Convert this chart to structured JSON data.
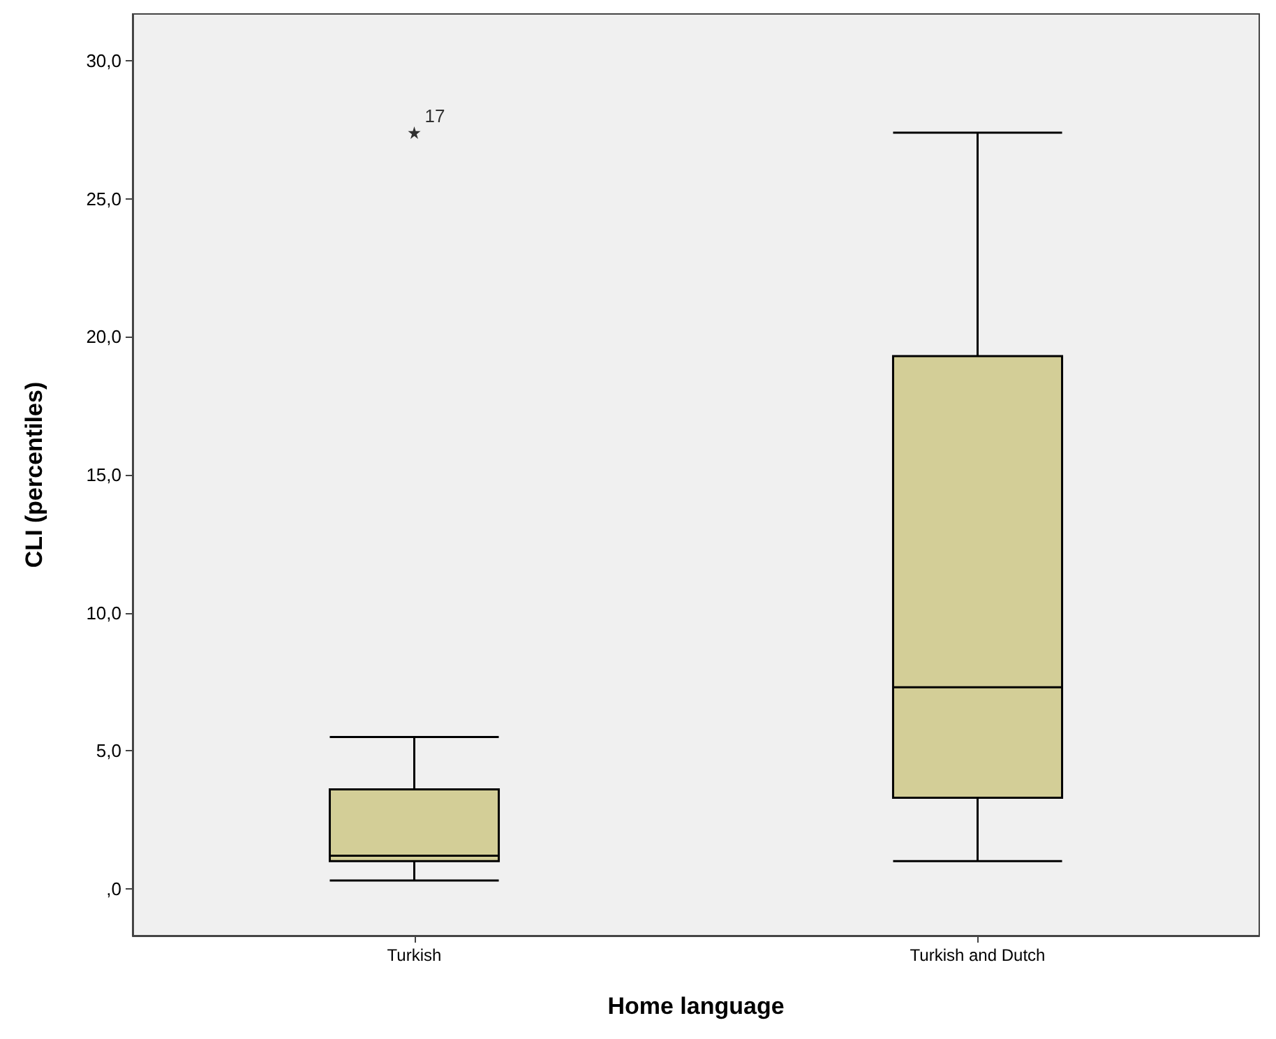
{
  "chart_data": {
    "type": "box",
    "xlabel": "Home language",
    "ylabel": "CLI (percentiles)",
    "categories": [
      "Turkish",
      "Turkish and Dutch"
    ],
    "boxes": [
      {
        "low": 0.3,
        "q1": 1.0,
        "median": 1.2,
        "q3": 3.6,
        "high": 5.5,
        "outliers": [
          27.4
        ]
      },
      {
        "low": 1.0,
        "q1": 3.3,
        "median": 7.3,
        "q3": 19.3,
        "high": 27.4
      }
    ],
    "color": "#d3ce97",
    "ylim": [
      -1.7,
      31.7
    ],
    "yticks": [
      {
        "value": 0,
        "label": ",0"
      },
      {
        "value": 5,
        "label": "5,0"
      },
      {
        "value": 10,
        "label": "10,0"
      },
      {
        "value": 15,
        "label": "15,0"
      },
      {
        "value": 20,
        "label": "20,0"
      },
      {
        "value": 25,
        "label": "25,0"
      },
      {
        "value": 30,
        "label": "30,0"
      }
    ],
    "grid": false,
    "marker": "star",
    "annotations": [
      "17"
    ]
  }
}
